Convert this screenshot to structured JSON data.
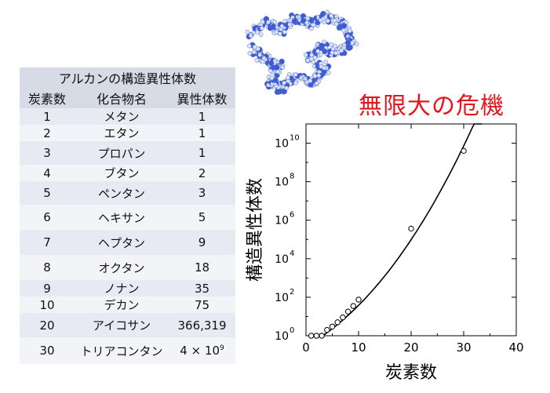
{
  "headline": "無限大の危機",
  "table": {
    "title": "アルカンの構造異性体数",
    "headers": [
      "炭素数",
      "化合物名",
      "異性体数"
    ],
    "rows": [
      {
        "carbons": "1",
        "name": "メタン",
        "isomers": "1"
      },
      {
        "carbons": "2",
        "name": "エタン",
        "isomers": "1"
      },
      {
        "carbons": "3",
        "name": "プロパン",
        "isomers": "1"
      },
      {
        "carbons": "4",
        "name": "ブタン",
        "isomers": "2"
      },
      {
        "carbons": "5",
        "name": "ペンタン",
        "isomers": "3"
      },
      {
        "carbons": "6",
        "name": "ヘキサン",
        "isomers": "5"
      },
      {
        "carbons": "7",
        "name": "ヘプタン",
        "isomers": "9"
      },
      {
        "carbons": "8",
        "name": "オクタン",
        "isomers": "18"
      },
      {
        "carbons": "9",
        "name": "ノナン",
        "isomers": "35"
      },
      {
        "carbons": "10",
        "name": "デカン",
        "isomers": "75"
      },
      {
        "carbons": "20",
        "name": "アイコサン",
        "isomers": "366,319"
      },
      {
        "carbons": "30",
        "name": "トリアコンタン",
        "isomers_base": "4 × 10",
        "isomers_exp": "9"
      }
    ]
  },
  "chart_data": {
    "type": "scatter",
    "xlabel": "炭素数",
    "ylabel": "構造異性体数",
    "xlim": [
      0,
      40
    ],
    "ylim_log10": [
      0,
      11
    ],
    "y_scale": "log",
    "xticks": [
      "0",
      "10",
      "20",
      "30",
      "40"
    ],
    "yticks_base": "10",
    "yticks_exp": [
      "0",
      "2",
      "4",
      "6",
      "8",
      "10"
    ],
    "points": [
      {
        "x": 1,
        "y": 1
      },
      {
        "x": 2,
        "y": 1
      },
      {
        "x": 3,
        "y": 1
      },
      {
        "x": 4,
        "y": 2
      },
      {
        "x": 5,
        "y": 3
      },
      {
        "x": 6,
        "y": 5
      },
      {
        "x": 7,
        "y": 9
      },
      {
        "x": 8,
        "y": 18
      },
      {
        "x": 9,
        "y": 35
      },
      {
        "x": 10,
        "y": 75
      },
      {
        "x": 20,
        "y": 366319
      },
      {
        "x": 30,
        "y": 4000000000
      }
    ],
    "fit_line": true
  }
}
